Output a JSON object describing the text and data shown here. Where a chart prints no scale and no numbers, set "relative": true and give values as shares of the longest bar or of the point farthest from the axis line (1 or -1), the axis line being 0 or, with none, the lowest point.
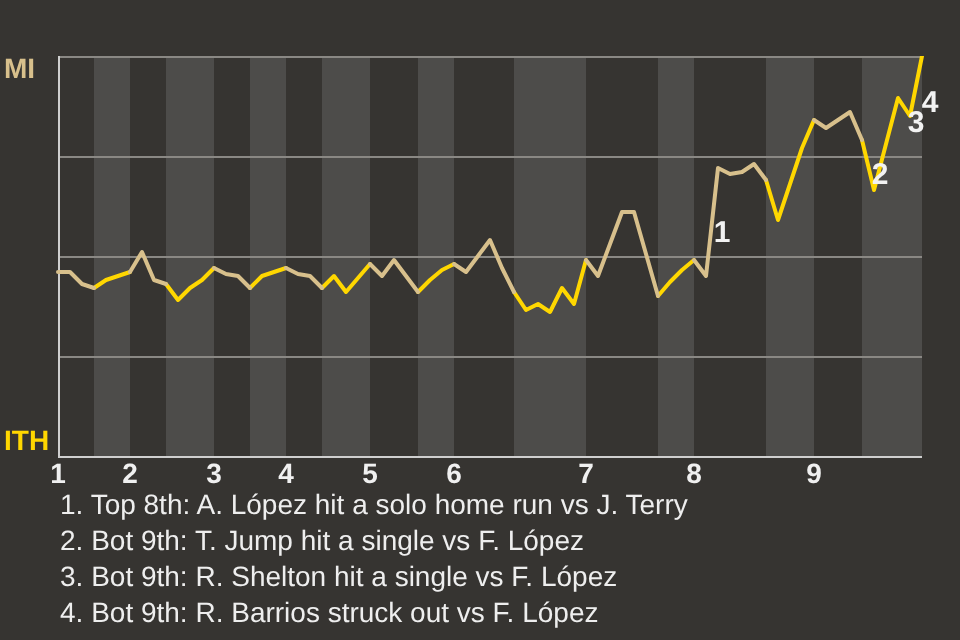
{
  "chart_data": {
    "type": "line",
    "relative": true,
    "categories": [
      "1",
      null,
      null,
      null,
      null,
      null,
      "2",
      null,
      null,
      null,
      null,
      null,
      null,
      "3",
      null,
      null,
      null,
      null,
      null,
      "4",
      null,
      null,
      null,
      null,
      null,
      null,
      "5",
      null,
      null,
      null,
      null,
      null,
      null,
      "6",
      null,
      null,
      null,
      null,
      null,
      null,
      null,
      null,
      null,
      null,
      "7",
      null,
      null,
      null,
      null,
      null,
      null,
      null,
      null,
      "8",
      null,
      null,
      null,
      null,
      null,
      null,
      null,
      null,
      null,
      "9",
      null,
      null,
      null,
      null,
      null,
      null,
      null,
      null,
      null
    ],
    "grid": "y",
    "legend": false,
    "marker": "none",
    "line_style": "solid",
    "series": [
      {
        "color": "#d8c08c",
        "values": [
          0.46,
          0.46,
          0.43,
          0.42,
          null,
          null,
          0.46,
          0.51,
          0.44,
          0.43,
          null,
          null,
          null,
          0.47,
          0.455,
          0.45,
          0.42,
          null,
          null,
          0.47,
          0.455,
          0.45,
          0.42,
          null,
          null,
          null,
          0.48,
          0.45,
          0.49,
          0.45,
          0.41,
          null,
          null,
          0.48,
          0.46,
          0.5,
          0.54,
          0.47,
          0.41,
          null,
          null,
          null,
          null,
          null,
          0.49,
          0.45,
          0.53,
          0.61,
          0.61,
          0.505,
          0.4,
          null,
          null,
          0.49,
          0.45,
          0.72,
          0.705,
          0.71,
          0.73,
          0.69,
          null,
          null,
          null,
          0.84,
          0.82,
          0.84,
          0.86,
          0.79,
          null,
          null,
          null,
          null,
          null
        ]
      },
      {
        "color": "#ffd700",
        "values": [
          null,
          null,
          null,
          0.42,
          0.44,
          0.45,
          0.46,
          null,
          null,
          0.43,
          0.39,
          0.42,
          0.44,
          0.47,
          null,
          null,
          0.42,
          0.45,
          0.46,
          0.47,
          null,
          null,
          0.42,
          0.45,
          0.41,
          0.445,
          0.48,
          null,
          null,
          null,
          0.41,
          0.44,
          0.465,
          0.48,
          null,
          null,
          null,
          null,
          0.41,
          0.365,
          0.38,
          0.36,
          0.42,
          0.38,
          0.49,
          null,
          null,
          null,
          null,
          null,
          0.4,
          0.435,
          0.465,
          0.49,
          null,
          null,
          null,
          null,
          null,
          0.69,
          0.59,
          0.68,
          0.77,
          0.84,
          null,
          null,
          null,
          0.79,
          0.665,
          0.78,
          0.895,
          0.85,
          1
        ]
      }
    ],
    "annotations": [
      "MI",
      "ITH",
      "1",
      "2",
      "3",
      "4",
      "1. Top 8th: A. López hit a solo home run vs J. Terry",
      "2. Bot 9th: T. Jump hit a single vs F. López",
      "3. Bot 9th: R. Shelton hit a single vs F. López",
      "4. Bot 9th: R. Barrios struck out vs F. López"
    ]
  }
}
